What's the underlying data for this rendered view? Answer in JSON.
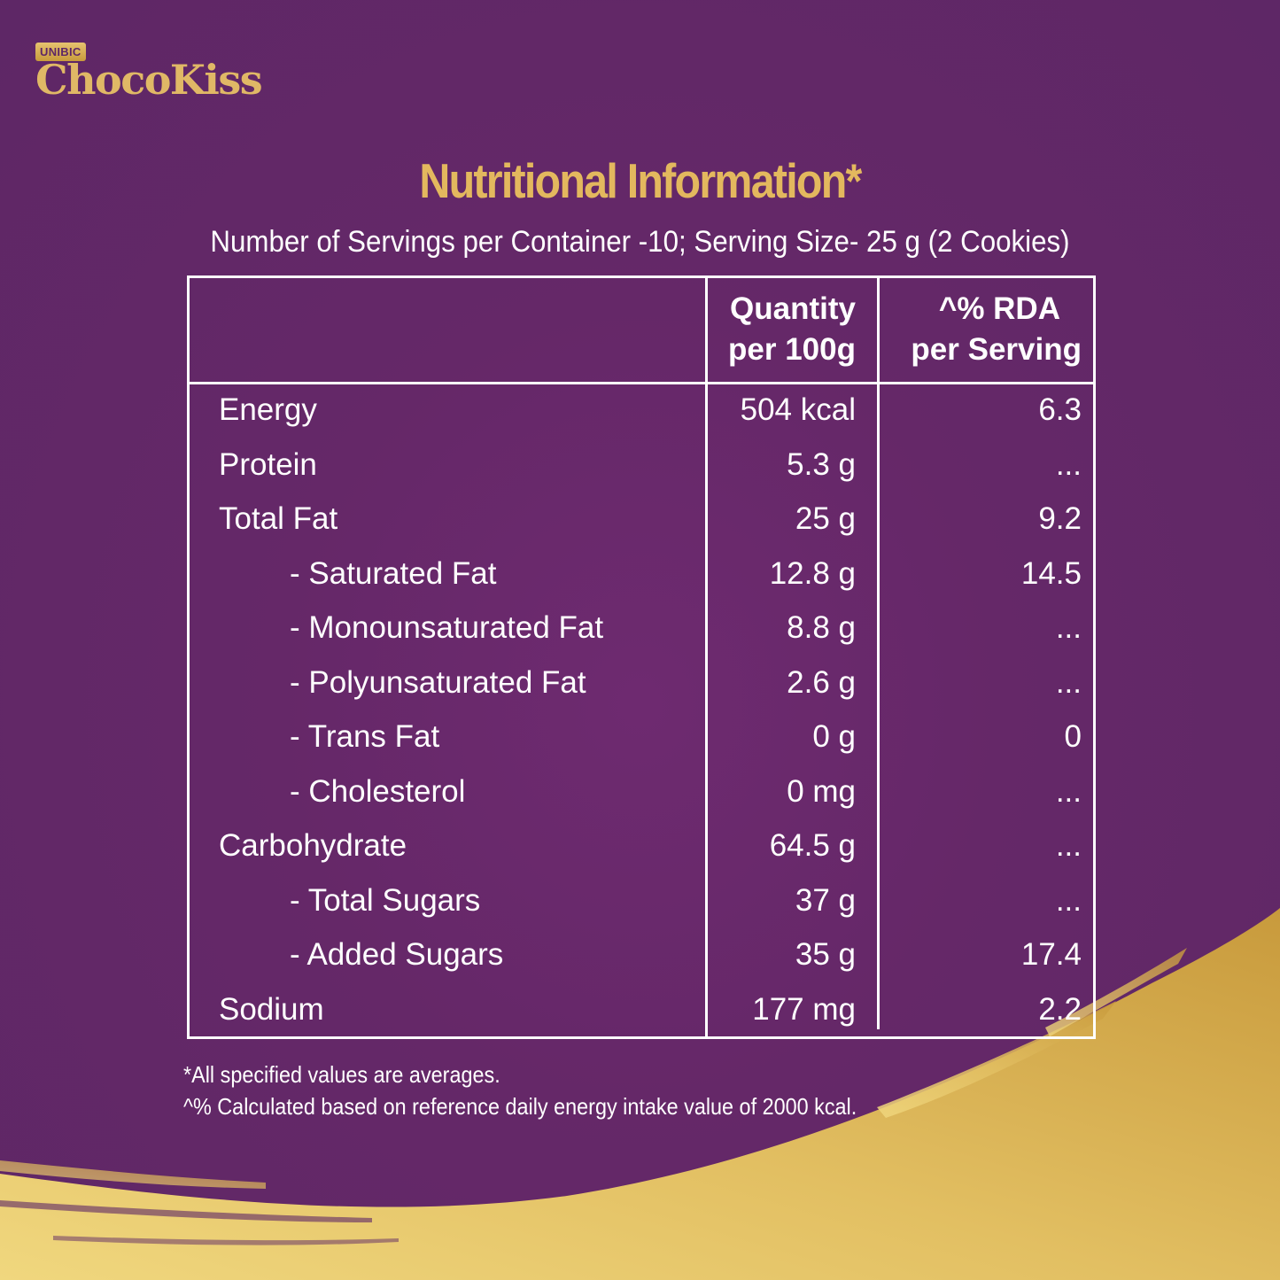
{
  "brand": {
    "badge": "UNIBIC",
    "name": "ChocoKiss"
  },
  "title": "Nutritional Information*",
  "subtitle": "Number of Servings per Container -10; Serving Size- 25 g (2 Cookies)",
  "table": {
    "headers": {
      "quantity_line1": "Quantity",
      "quantity_line2": "per 100g",
      "rda_line1": "^% RDA",
      "rda_line2": "per Serving"
    },
    "rows": [
      {
        "name": "Energy",
        "sub": false,
        "qty": "504 kcal",
        "rda": "6.3"
      },
      {
        "name": "Protein",
        "sub": false,
        "qty": "5.3 g",
        "rda": "..."
      },
      {
        "name": "Total Fat",
        "sub": false,
        "qty": "25 g",
        "rda": "9.2"
      },
      {
        "name": "- Saturated Fat",
        "sub": true,
        "qty": "12.8 g",
        "rda": "14.5"
      },
      {
        "name": "- Monounsaturated Fat",
        "sub": true,
        "qty": "8.8 g",
        "rda": "..."
      },
      {
        "name": "- Polyunsaturated Fat",
        "sub": true,
        "qty": "2.6 g",
        "rda": "..."
      },
      {
        "name": "- Trans Fat",
        "sub": true,
        "qty": "0 g",
        "rda": "0"
      },
      {
        "name": "- Cholesterol",
        "sub": true,
        "qty": "0 mg",
        "rda": "..."
      },
      {
        "name": "Carbohydrate",
        "sub": false,
        "qty": "64.5 g",
        "rda": "..."
      },
      {
        "name": "- Total Sugars",
        "sub": true,
        "qty": "37 g",
        "rda": "..."
      },
      {
        "name": "- Added Sugars",
        "sub": true,
        "qty": "35 g",
        "rda": "17.4"
      },
      {
        "name": "Sodium",
        "sub": false,
        "qty": "177 mg",
        "rda": "2.2"
      }
    ]
  },
  "footnotes": {
    "line1": "*All specified values are averages.",
    "line2": "^% Calculated based on reference daily energy intake value of 2000 kcal."
  },
  "colors": {
    "background": "#652868",
    "gold": "#e3b85e"
  }
}
